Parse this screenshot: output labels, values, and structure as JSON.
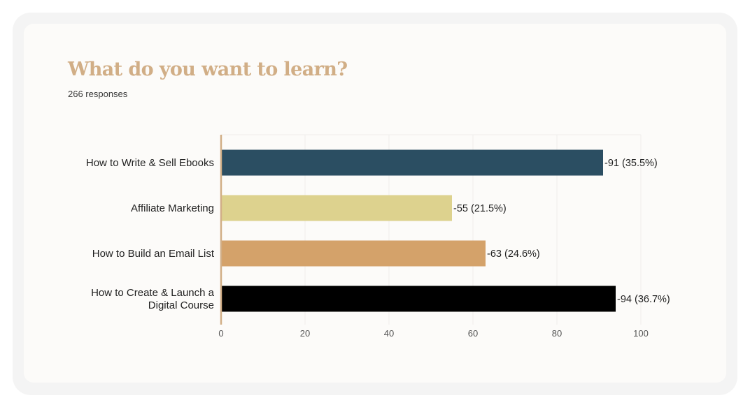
{
  "chart_data": {
    "type": "bar",
    "orientation": "horizontal",
    "title": "What do you want to learn?",
    "subtitle": "266 responses",
    "categories": [
      "How to Write & Sell Ebooks",
      "Affiliate Marketing",
      "How to Build an Email List",
      "How to Create & Launch a Digital Course"
    ],
    "values": [
      91,
      55,
      63,
      94
    ],
    "data_labels": [
      "-91 (35.5%)",
      "-55 (21.5%)",
      "-63 (24.6%)",
      "-94 (36.7%)"
    ],
    "colors": [
      "#2b4e62",
      "#ddd28e",
      "#d4a26a",
      "#000000"
    ],
    "axis_color": "#d1ae86",
    "xlim": [
      0,
      100
    ],
    "xticks": [
      0,
      20,
      40,
      60,
      80,
      100
    ],
    "grid": true,
    "legend": "none"
  }
}
